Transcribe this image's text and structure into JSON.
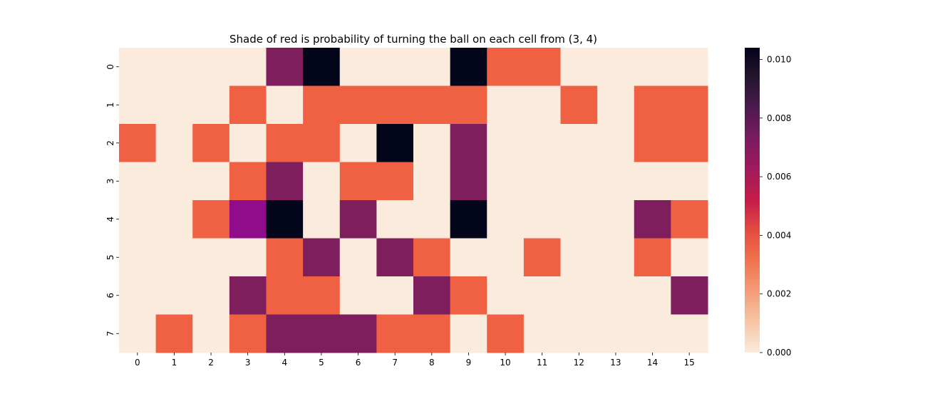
{
  "chart_data": {
    "type": "heatmap",
    "title": "Shade of red is probability of turning the ball on each cell from (3, 4)",
    "xlabel": "",
    "ylabel": "",
    "x_categories": [
      "0",
      "1",
      "2",
      "3",
      "4",
      "5",
      "6",
      "7",
      "8",
      "9",
      "10",
      "11",
      "12",
      "13",
      "14",
      "15"
    ],
    "y_categories": [
      "0",
      "1",
      "2",
      "3",
      "4",
      "5",
      "6",
      "7"
    ],
    "values": [
      [
        0,
        0,
        0,
        0,
        0.0075,
        0.0104,
        0,
        0,
        0,
        0.0104,
        0.0037,
        0.0037,
        0,
        0,
        0,
        0
      ],
      [
        0,
        0,
        0,
        0.0037,
        0,
        0.0037,
        0.0037,
        0.0037,
        0.0037,
        0.0037,
        0,
        0,
        0.0037,
        0,
        0.0037,
        0.0037
      ],
      [
        0.0037,
        0,
        0.0037,
        0,
        0.0037,
        0.0037,
        0,
        0.0104,
        0,
        0.0075,
        0,
        0,
        0,
        0,
        0.0037,
        0.0037
      ],
      [
        0,
        0,
        0,
        0.0037,
        0.0075,
        0,
        0.0037,
        0.0037,
        0,
        0.0075,
        0,
        0,
        0,
        0,
        0,
        0
      ],
      [
        0,
        0,
        0.0037,
        0.0083,
        0.0104,
        0,
        0.0075,
        0,
        0,
        0.0104,
        0,
        0,
        0,
        0,
        0.0075,
        0.0037
      ],
      [
        0,
        0,
        0,
        0,
        0.0037,
        0.0075,
        0,
        0.0075,
        0.0037,
        0,
        0,
        0.0037,
        0,
        0,
        0.0037,
        0
      ],
      [
        0,
        0,
        0,
        0.0075,
        0.0037,
        0.0037,
        0,
        0,
        0.0075,
        0.0037,
        0,
        0,
        0,
        0,
        0,
        0.0075
      ],
      [
        0,
        0.0037,
        0,
        0.0037,
        0.0075,
        0.0075,
        0.0075,
        0.0037,
        0.0037,
        0,
        0.0037,
        0,
        0,
        0,
        0,
        0
      ]
    ],
    "colorbar": {
      "min": 0,
      "max": 0.0104,
      "ticks": [
        0.0,
        0.002,
        0.004,
        0.006,
        0.008,
        0.01
      ],
      "tick_labels": [
        "0.000",
        "0.002",
        "0.004",
        "0.006",
        "0.008",
        "0.010"
      ],
      "colormap": "rocket_r",
      "color_stops": [
        {
          "v": 0.0,
          "color": "#faebdd"
        },
        {
          "v": 0.1,
          "color": "#f7c5a6"
        },
        {
          "v": 0.2,
          "color": "#f49d78"
        },
        {
          "v": 0.3,
          "color": "#f0744f"
        },
        {
          "v": 0.4,
          "color": "#e24d3e"
        },
        {
          "v": 0.5,
          "color": "#c51b4b"
        },
        {
          "v": 0.6,
          "color": "#a11a5b"
        },
        {
          "v": 0.7,
          "color": "#7b1b60"
        },
        {
          "v": 0.8,
          "color": "#4e1a50"
        },
        {
          "v": 0.9,
          "color": "#261530"
        },
        {
          "v": 1.0,
          "color": "#03051a"
        }
      ]
    },
    "cell_colors": {
      "zero": "#faebdd",
      "low": "#ef6142",
      "mid": "#7e1e5c",
      "high": "#900c8b",
      "max": "#03051a"
    },
    "grid": false,
    "legend": "colorbar-right"
  }
}
